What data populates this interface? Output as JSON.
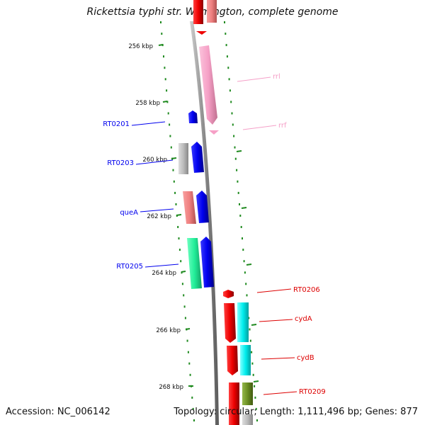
{
  "title": "Rickettsia typhi str. Wilmington, complete genome",
  "footer": {
    "accession": "Accession: NC_006142",
    "summary": "Topology: circular; Length: 1,111,496 bp; Genes: 877"
  },
  "ticks": [
    {
      "label": "256 kbp",
      "pos": 256
    },
    {
      "label": "258 kbp",
      "pos": 258
    },
    {
      "label": "260 kbp",
      "pos": 260
    },
    {
      "label": "262 kbp",
      "pos": 262
    },
    {
      "label": "264 kbp",
      "pos": 264
    },
    {
      "label": "266 kbp",
      "pos": 266
    },
    {
      "label": "268 kbp",
      "pos": 268
    }
  ],
  "genes": [
    {
      "label": "RT0201",
      "color": "#0000ee"
    },
    {
      "label": "RT0203",
      "color": "#0000ee"
    },
    {
      "label": "queA",
      "color": "#0000ee"
    },
    {
      "label": "RT0205",
      "color": "#0000ee"
    },
    {
      "label": "rrl",
      "color": "#f5a0c8"
    },
    {
      "label": "rrf",
      "color": "#f5a0c8"
    },
    {
      "label": "RT0206",
      "color": "#dd0000"
    },
    {
      "label": "cydA",
      "color": "#dd0000"
    },
    {
      "label": "cydB",
      "color": "#dd0000"
    },
    {
      "label": "RT0209",
      "color": "#dd0000"
    }
  ],
  "colors": {
    "backbone": "#8a8a8a",
    "tick_dots": "#1f8a1f",
    "forward_gene": "#0000ee",
    "reverse_gene": "#ee0000",
    "rrna": "#f8a6c9",
    "cog_grey": "#bbbbbb",
    "cog_salmon": "#f08080",
    "cog_green": "#22ee99",
    "cog_cyan": "#00eeee",
    "cog_olive": "#6b8e23"
  }
}
